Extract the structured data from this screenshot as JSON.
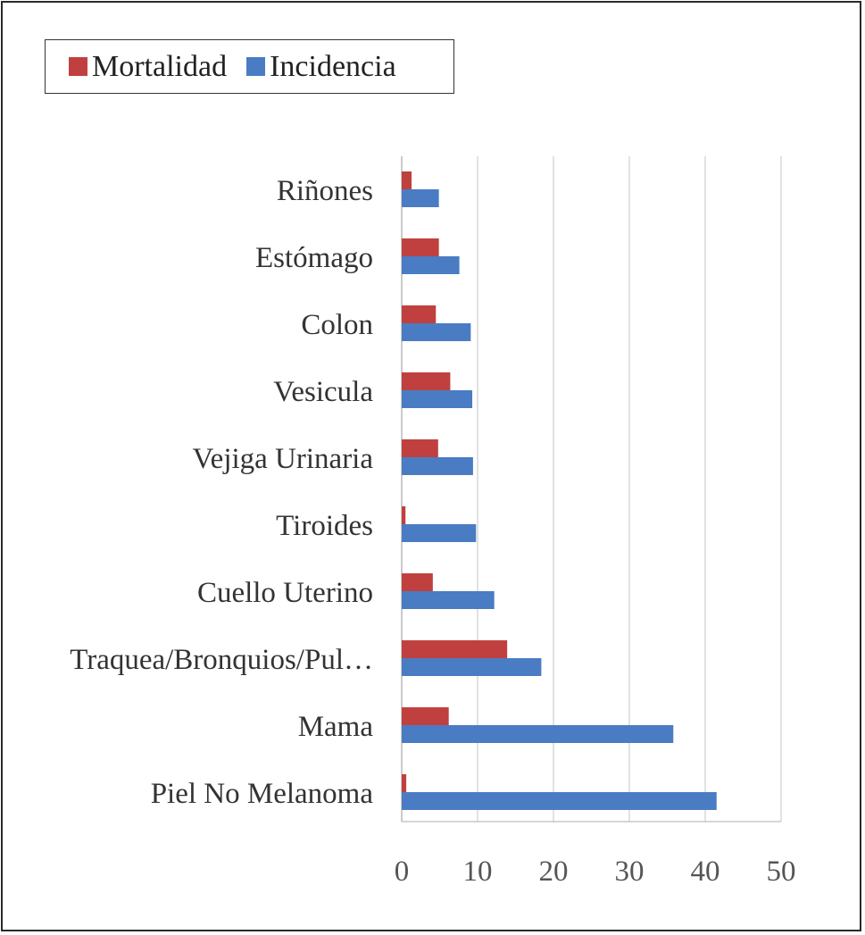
{
  "legend": {
    "mortalidad_label": "Mortalidad",
    "incidencia_label": "Incidencia"
  },
  "chart_data": {
    "type": "bar",
    "orientation": "horizontal",
    "categories": [
      "Piel No Melanoma",
      "Mama",
      "Traquea/Bronquios/Pul…",
      "Cuello Uterino",
      "Tiroides",
      "Vejiga Urinaria",
      "Vesicula",
      "Colon",
      "Estómago",
      "Riñones"
    ],
    "series": [
      {
        "name": "Mortalidad",
        "color": "#c0403f",
        "values": [
          0.6,
          6.2,
          13.9,
          4.1,
          0.5,
          4.8,
          6.4,
          4.5,
          4.9,
          1.3
        ]
      },
      {
        "name": "Incidencia",
        "color": "#4a7cc4",
        "values": [
          41.5,
          35.8,
          18.4,
          12.2,
          9.8,
          9.4,
          9.3,
          9.1,
          7.6,
          4.9
        ]
      }
    ],
    "xlim": [
      0,
      50
    ],
    "xticks": [
      "0",
      "10",
      "20",
      "30",
      "40",
      "50"
    ],
    "grid": true,
    "legend_position": "top-left"
  }
}
